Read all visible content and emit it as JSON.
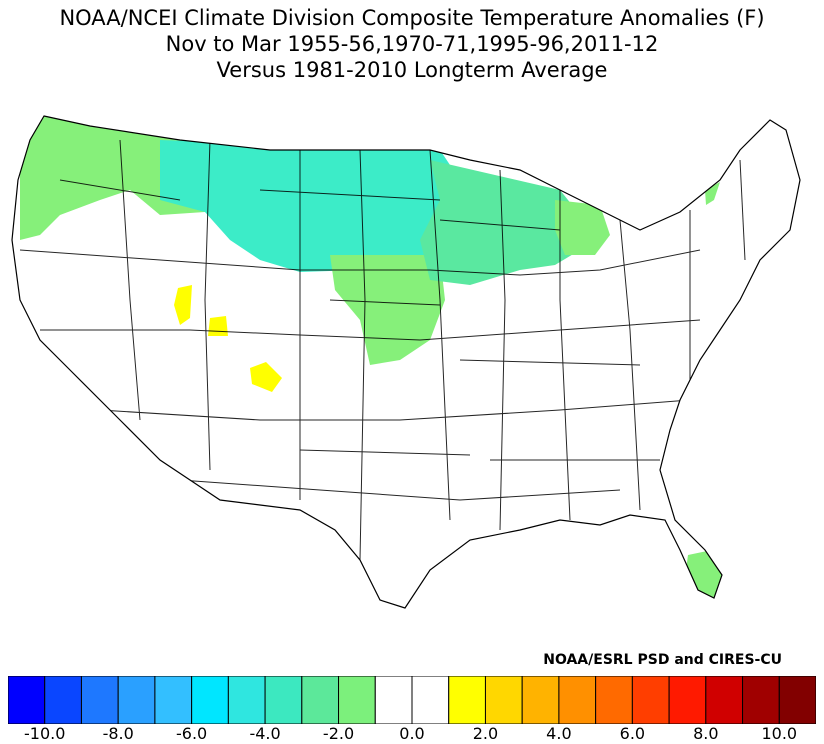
{
  "title_lines": [
    "NOAA/NCEI Climate Division Composite Temperature Anomalies (F)",
    "Nov to Mar  1955-56,1970-71,1995-96,2011-12",
    "Versus 1981-2010 Longterm Average"
  ],
  "credit": "NOAA/ESRL PSD and CIRES-CU",
  "colorbar": {
    "colors": [
      "#0000ff",
      "#0a46ff",
      "#1e78ff",
      "#2aa0ff",
      "#33bfff",
      "#00e6ff",
      "#2fe6e0",
      "#3ce8c0",
      "#5ce89a",
      "#7cf07c",
      "#ffffff",
      "#ffffff",
      "#ffff00",
      "#ffd700",
      "#ffb300",
      "#ff9000",
      "#ff6a00",
      "#ff3e00",
      "#ff1a00",
      "#d00000",
      "#a00000",
      "#820000"
    ],
    "tick_labels": [
      "-10.0",
      "-8.0",
      "-6.0",
      "-4.0",
      "-2.0",
      "0.0",
      "2.0",
      "4.0",
      "6.0",
      "8.0",
      "10.0"
    ]
  },
  "map": {
    "legend_colors": {
      "anom_m4": "#3cecc8",
      "anom_m3": "#5ae8a0",
      "anom_m2": "#86f07a",
      "anom_p1": "#ffff00",
      "none": "#ffffff"
    }
  }
}
